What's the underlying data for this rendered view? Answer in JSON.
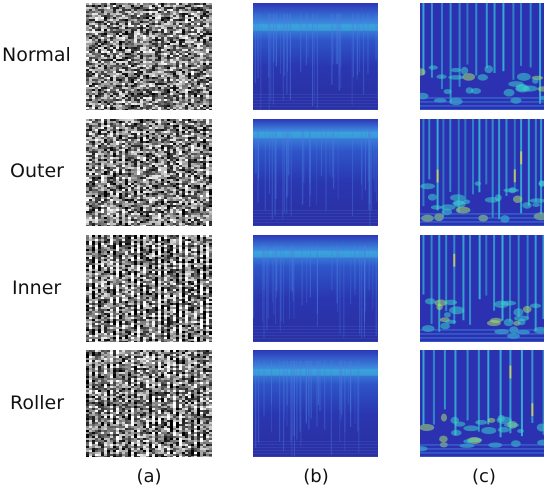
{
  "rows": [
    {
      "label": "Normal"
    },
    {
      "label": "Outer"
    },
    {
      "label": "Inner"
    },
    {
      "label": "Roller"
    }
  ],
  "columns": [
    {
      "label": "(a)",
      "kind": "grayscale-image"
    },
    {
      "label": "(b)",
      "kind": "spectrogram"
    },
    {
      "label": "(c)",
      "kind": "wavelet-scalogram"
    }
  ],
  "colors": {
    "background": "#ffffff",
    "spectrogram_dark": "#2b2fa0",
    "spectrogram_mid": "#3a6fd8",
    "highlight_cyan": "#36c6d8",
    "highlight_yellow": "#e8e64a"
  }
}
